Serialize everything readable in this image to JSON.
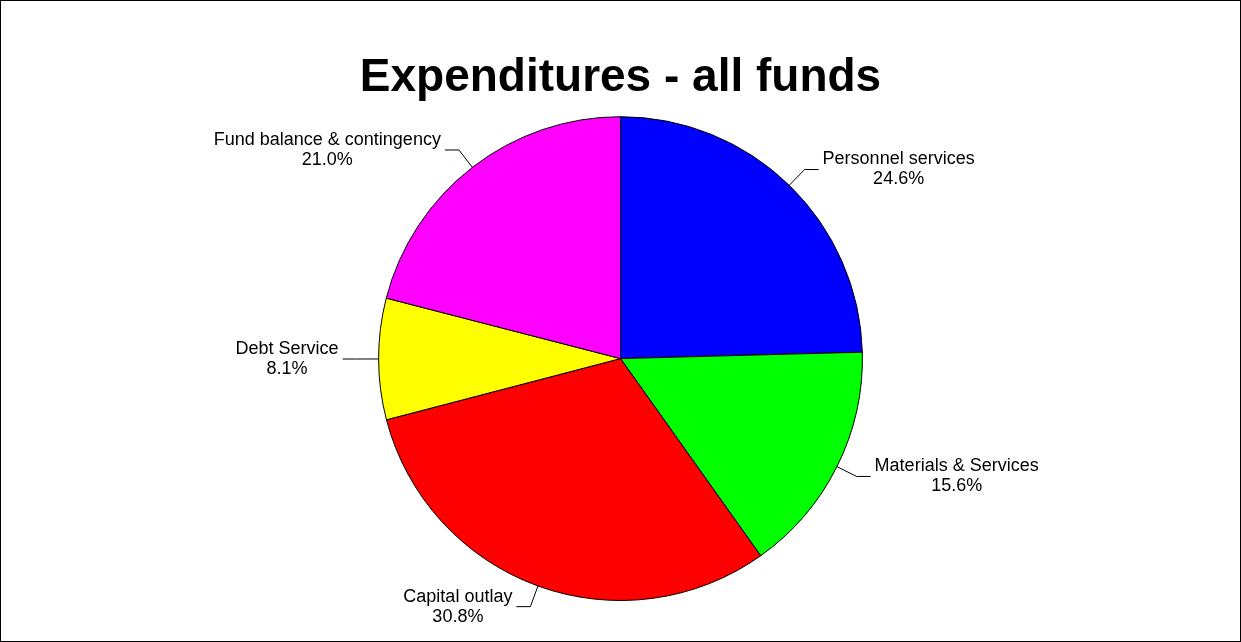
{
  "chart_data": {
    "type": "pie",
    "title": "Expenditures - all funds",
    "categories": [
      "Personnel services",
      "Materials & Services",
      "Capital outlay",
      "Debt Service",
      "Fund balance & contingency"
    ],
    "values": [
      24.6,
      15.6,
      30.8,
      8.1,
      21.0
    ],
    "colors": [
      "#0000ff",
      "#00ff00",
      "#ff0000",
      "#ffff00",
      "#ff00ff"
    ],
    "value_labels": [
      "24.6%",
      "15.6%",
      "30.8%",
      "8.1%",
      "21.0%"
    ],
    "legend": false
  }
}
